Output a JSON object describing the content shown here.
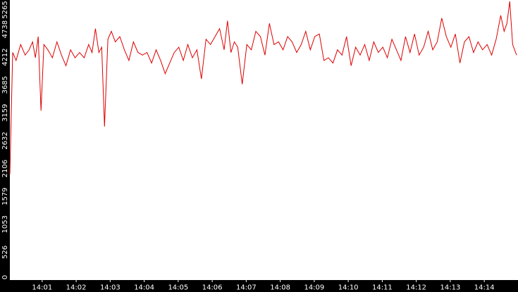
{
  "chart_data": {
    "type": "line",
    "title": "",
    "xlabel": "",
    "ylabel": "",
    "ylim": [
      0,
      5265
    ],
    "xlim": [
      "14:00:03",
      "14:14:57"
    ],
    "yticks": [
      0,
      526,
      1053,
      1579,
      2106,
      2632,
      3159,
      3685,
      4212,
      4738,
      5265
    ],
    "xticks": [
      "14:01",
      "14:02",
      "14:03",
      "14:04",
      "14:05",
      "14:06",
      "14:07",
      "14:08",
      "14:09",
      "14:10",
      "14:11",
      "14:12",
      "14:13",
      "14:14"
    ],
    "grid": false,
    "legend": "none",
    "colors": {
      "background": "#ffffff",
      "axis": "#000000",
      "axis_text": "#ffffff",
      "line": "#dd0000"
    },
    "series": [
      {
        "x": [
          "14:00:03",
          "14:00:08",
          "14:00:14",
          "14:00:22",
          "14:00:30",
          "14:00:37",
          "14:00:43",
          "14:00:48",
          "14:00:53",
          "14:00:58",
          "14:01:03",
          "14:01:10",
          "14:01:18",
          "14:01:26",
          "14:01:34",
          "14:01:42",
          "14:01:50",
          "14:01:58",
          "14:02:06",
          "14:02:14",
          "14:02:22",
          "14:02:28",
          "14:02:34",
          "14:02:40",
          "14:02:45",
          "14:02:50",
          "14:02:56",
          "14:03:02",
          "14:03:09",
          "14:03:17",
          "14:03:25",
          "14:03:33",
          "14:03:41",
          "14:03:49",
          "14:03:57",
          "14:04:05",
          "14:04:13",
          "14:04:21",
          "14:04:29",
          "14:04:37",
          "14:04:45",
          "14:04:53",
          "14:05:01",
          "14:05:09",
          "14:05:17",
          "14:05:25",
          "14:05:33",
          "14:05:41",
          "14:05:49",
          "14:05:57",
          "14:06:05",
          "14:06:13",
          "14:06:21",
          "14:06:27",
          "14:06:33",
          "14:06:39",
          "14:06:45",
          "14:06:53",
          "14:07:01",
          "14:07:09",
          "14:07:17",
          "14:07:25",
          "14:07:33",
          "14:07:41",
          "14:07:49",
          "14:07:57",
          "14:08:05",
          "14:08:13",
          "14:08:21",
          "14:08:29",
          "14:08:37",
          "14:08:45",
          "14:08:53",
          "14:09:01",
          "14:09:09",
          "14:09:17",
          "14:09:25",
          "14:09:33",
          "14:09:41",
          "14:09:49",
          "14:09:57",
          "14:10:05",
          "14:10:13",
          "14:10:21",
          "14:10:29",
          "14:10:37",
          "14:10:45",
          "14:10:53",
          "14:11:01",
          "14:11:09",
          "14:11:17",
          "14:11:25",
          "14:11:33",
          "14:11:41",
          "14:11:49",
          "14:11:57",
          "14:12:05",
          "14:12:13",
          "14:12:21",
          "14:12:29",
          "14:12:37",
          "14:12:45",
          "14:12:53",
          "14:13:01",
          "14:13:09",
          "14:13:17",
          "14:13:25",
          "14:13:33",
          "14:13:41",
          "14:13:49",
          "14:13:57",
          "14:14:05",
          "14:14:13",
          "14:14:21",
          "14:14:29",
          "14:14:35",
          "14:14:40",
          "14:14:45",
          "14:14:50",
          "14:14:57"
        ],
        "values": [
          2000,
          4300,
          4150,
          4450,
          4250,
          4350,
          4500,
          4200,
          4600,
          3200,
          4450,
          4350,
          4200,
          4500,
          4250,
          4050,
          4350,
          4200,
          4300,
          4200,
          4450,
          4300,
          4750,
          4300,
          4400,
          2900,
          4550,
          4700,
          4500,
          4600,
          4350,
          4150,
          4500,
          4300,
          4250,
          4300,
          4100,
          4350,
          4150,
          3900,
          4100,
          4300,
          4400,
          4150,
          4450,
          4200,
          4350,
          3800,
          4550,
          4450,
          4600,
          4750,
          4350,
          4900,
          4300,
          4500,
          4400,
          3700,
          4450,
          4350,
          4700,
          4600,
          4250,
          4850,
          4450,
          4500,
          4350,
          4600,
          4500,
          4300,
          4450,
          4700,
          4350,
          4600,
          4650,
          4150,
          4200,
          4100,
          4350,
          4250,
          4600,
          4050,
          4400,
          4250,
          4450,
          4150,
          4500,
          4300,
          4400,
          4200,
          4550,
          4350,
          4150,
          4600,
          4300,
          4650,
          4250,
          4400,
          4700,
          4350,
          4500,
          4950,
          4600,
          4400,
          4650,
          4100,
          4500,
          4600,
          4300,
          4500,
          4350,
          4450,
          4250,
          4550,
          5000,
          4700,
          4850,
          5265,
          4450,
          4250
        ]
      }
    ]
  }
}
